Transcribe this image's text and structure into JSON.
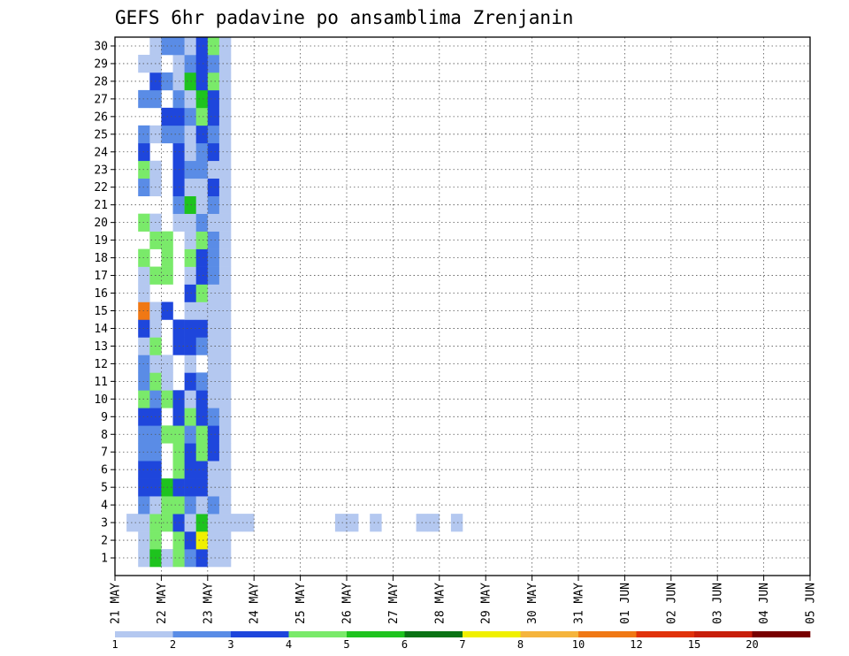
{
  "chart_data": {
    "type": "heatmap",
    "title": "GEFS 6hr padavine po ansamblima Zrenjanin",
    "xlabel": "",
    "ylabel": "",
    "x_ticks": [
      "21 MAY",
      "22 MAY",
      "23 MAY",
      "24 MAY",
      "25 MAY",
      "26 MAY",
      "27 MAY",
      "28 MAY",
      "29 MAY",
      "30 MAY",
      "31 MAY",
      "01 JUN",
      "02 JUN",
      "03 JUN",
      "04 JUN",
      "05 JUN"
    ],
    "y_ticks": [
      "1",
      "2",
      "3",
      "4",
      "5",
      "6",
      "7",
      "8",
      "9",
      "10",
      "11",
      "12",
      "13",
      "14",
      "15",
      "16",
      "17",
      "18",
      "19",
      "20",
      "21",
      "22",
      "23",
      "24",
      "25",
      "26",
      "27",
      "28",
      "29",
      "30"
    ],
    "grid": true,
    "legend_placement": "bottom",
    "levels": [
      "1",
      "2",
      "3",
      "4",
      "5",
      "6",
      "7",
      "8",
      "10",
      "12",
      "15",
      "20"
    ],
    "colors": [
      "#b4c8f0",
      "#5a8ce6",
      "#1e46dc",
      "#7aea6a",
      "#1ec31e",
      "#0a7314",
      "#f0f000",
      "#f5b43c",
      "#f07814",
      "#e1320a",
      "#c81e0a",
      "#780000"
    ],
    "cells": [
      [
        2,
        0,
        1
      ],
      [
        2,
        1,
        1
      ],
      [
        3,
        1,
        1
      ],
      [
        1,
        2,
        1
      ],
      [
        2,
        2,
        1
      ],
      [
        3,
        2,
        1
      ],
      [
        7,
        2,
        1
      ],
      [
        8,
        2,
        1
      ],
      [
        10,
        2,
        1
      ],
      [
        11,
        2,
        1
      ],
      [
        19,
        2,
        1
      ],
      [
        20,
        2,
        1
      ],
      [
        22,
        2,
        1
      ],
      [
        26,
        2,
        1
      ],
      [
        27,
        2,
        1
      ],
      [
        29,
        2,
        1
      ],
      [
        2,
        3,
        2
      ],
      [
        2,
        4,
        3
      ],
      [
        2,
        5,
        3
      ],
      [
        2,
        6,
        2
      ],
      [
        2,
        7,
        2
      ],
      [
        2,
        8,
        3
      ],
      [
        2,
        9,
        4
      ],
      [
        2,
        10,
        2
      ],
      [
        2,
        11,
        2
      ],
      [
        2,
        12,
        1
      ],
      [
        2,
        13,
        3
      ],
      [
        2,
        14,
        9
      ],
      [
        2,
        15,
        1
      ],
      [
        2,
        16,
        1
      ],
      [
        2,
        17,
        4
      ],
      [
        2,
        19,
        4
      ],
      [
        2,
        21,
        2
      ],
      [
        2,
        22,
        4
      ],
      [
        2,
        23,
        3
      ],
      [
        2,
        24,
        2
      ],
      [
        2,
        26,
        2
      ],
      [
        2,
        28,
        1
      ],
      [
        3,
        0,
        5
      ],
      [
        3,
        1,
        4
      ],
      [
        3,
        2,
        4
      ],
      [
        3,
        3,
        1
      ],
      [
        3,
        4,
        3
      ],
      [
        3,
        5,
        3
      ],
      [
        3,
        6,
        2
      ],
      [
        3,
        7,
        2
      ],
      [
        3,
        8,
        3
      ],
      [
        3,
        9,
        2
      ],
      [
        3,
        10,
        4
      ],
      [
        3,
        11,
        1
      ],
      [
        3,
        12,
        4
      ],
      [
        3,
        13,
        1
      ],
      [
        3,
        14,
        1
      ],
      [
        3,
        16,
        4
      ],
      [
        3,
        18,
        4
      ],
      [
        3,
        19,
        1
      ],
      [
        3,
        21,
        1
      ],
      [
        3,
        22,
        1
      ],
      [
        3,
        24,
        1
      ],
      [
        3,
        26,
        2
      ],
      [
        3,
        27,
        3
      ],
      [
        3,
        28,
        1
      ],
      [
        3,
        29,
        1
      ],
      [
        4,
        0,
        1
      ],
      [
        4,
        2,
        4
      ],
      [
        4,
        3,
        4
      ],
      [
        4,
        4,
        5
      ],
      [
        4,
        7,
        4
      ],
      [
        4,
        9,
        4
      ],
      [
        4,
        10,
        1
      ],
      [
        4,
        11,
        1
      ],
      [
        4,
        14,
        3
      ],
      [
        4,
        16,
        4
      ],
      [
        4,
        17,
        4
      ],
      [
        4,
        18,
        4
      ],
      [
        4,
        24,
        2
      ],
      [
        4,
        25,
        3
      ],
      [
        4,
        27,
        2
      ],
      [
        4,
        29,
        2
      ],
      [
        5,
        0,
        4
      ],
      [
        5,
        1,
        4
      ],
      [
        5,
        2,
        3
      ],
      [
        5,
        3,
        4
      ],
      [
        5,
        4,
        3
      ],
      [
        5,
        5,
        4
      ],
      [
        5,
        6,
        4
      ],
      [
        5,
        7,
        4
      ],
      [
        5,
        8,
        3
      ],
      [
        5,
        9,
        3
      ],
      [
        5,
        12,
        3
      ],
      [
        5,
        13,
        3
      ],
      [
        5,
        19,
        1
      ],
      [
        5,
        20,
        2
      ],
      [
        5,
        21,
        3
      ],
      [
        5,
        22,
        3
      ],
      [
        5,
        23,
        3
      ],
      [
        5,
        24,
        2
      ],
      [
        5,
        25,
        3
      ],
      [
        5,
        26,
        2
      ],
      [
        5,
        27,
        1
      ],
      [
        5,
        28,
        1
      ],
      [
        5,
        29,
        2
      ],
      [
        6,
        0,
        2
      ],
      [
        6,
        1,
        3
      ],
      [
        6,
        2,
        1
      ],
      [
        6,
        3,
        2
      ],
      [
        6,
        4,
        3
      ],
      [
        6,
        5,
        3
      ],
      [
        6,
        6,
        3
      ],
      [
        6,
        7,
        2
      ],
      [
        6,
        8,
        4
      ],
      [
        6,
        9,
        1
      ],
      [
        6,
        10,
        3
      ],
      [
        6,
        11,
        1
      ],
      [
        6,
        12,
        3
      ],
      [
        6,
        13,
        3
      ],
      [
        6,
        14,
        1
      ],
      [
        6,
        15,
        3
      ],
      [
        6,
        16,
        1
      ],
      [
        6,
        17,
        4
      ],
      [
        6,
        18,
        1
      ],
      [
        6,
        19,
        1
      ],
      [
        6,
        20,
        5
      ],
      [
        6,
        21,
        1
      ],
      [
        6,
        22,
        2
      ],
      [
        6,
        23,
        1
      ],
      [
        6,
        24,
        1
      ],
      [
        6,
        25,
        2
      ],
      [
        6,
        26,
        1
      ],
      [
        6,
        27,
        5
      ],
      [
        6,
        28,
        2
      ],
      [
        6,
        29,
        1
      ],
      [
        7,
        0,
        3
      ],
      [
        7,
        1,
        7
      ],
      [
        7,
        2,
        5
      ],
      [
        7,
        3,
        1
      ],
      [
        7,
        4,
        3
      ],
      [
        7,
        5,
        3
      ],
      [
        7,
        6,
        4
      ],
      [
        7,
        7,
        4
      ],
      [
        7,
        8,
        3
      ],
      [
        7,
        9,
        3
      ],
      [
        7,
        10,
        2
      ],
      [
        7,
        12,
        2
      ],
      [
        7,
        13,
        3
      ],
      [
        7,
        14,
        1
      ],
      [
        7,
        15,
        4
      ],
      [
        7,
        16,
        3
      ],
      [
        7,
        17,
        3
      ],
      [
        7,
        18,
        4
      ],
      [
        7,
        19,
        2
      ],
      [
        7,
        20,
        1
      ],
      [
        7,
        21,
        1
      ],
      [
        7,
        22,
        2
      ],
      [
        7,
        23,
        2
      ],
      [
        7,
        24,
        3
      ],
      [
        7,
        25,
        4
      ],
      [
        7,
        26,
        5
      ],
      [
        7,
        27,
        3
      ],
      [
        7,
        28,
        3
      ],
      [
        7,
        29,
        3
      ],
      [
        8,
        0,
        1
      ],
      [
        8,
        1,
        1
      ],
      [
        8,
        2,
        1
      ],
      [
        8,
        3,
        2
      ],
      [
        8,
        4,
        1
      ],
      [
        8,
        5,
        1
      ],
      [
        8,
        6,
        3
      ],
      [
        8,
        7,
        3
      ],
      [
        8,
        8,
        2
      ],
      [
        8,
        9,
        1
      ],
      [
        8,
        10,
        1
      ],
      [
        8,
        11,
        1
      ],
      [
        8,
        12,
        1
      ],
      [
        8,
        13,
        1
      ],
      [
        8,
        14,
        1
      ],
      [
        8,
        15,
        1
      ],
      [
        8,
        16,
        2
      ],
      [
        8,
        17,
        2
      ],
      [
        8,
        18,
        2
      ],
      [
        8,
        19,
        1
      ],
      [
        8,
        20,
        2
      ],
      [
        8,
        21,
        3
      ],
      [
        8,
        22,
        1
      ],
      [
        8,
        23,
        3
      ],
      [
        8,
        24,
        2
      ],
      [
        8,
        25,
        3
      ],
      [
        8,
        26,
        3
      ],
      [
        8,
        27,
        4
      ],
      [
        8,
        28,
        2
      ],
      [
        8,
        29,
        4
      ],
      [
        9,
        0,
        1
      ],
      [
        9,
        1,
        1
      ],
      [
        9,
        2,
        1
      ],
      [
        9,
        3,
        1
      ],
      [
        9,
        4,
        1
      ],
      [
        9,
        5,
        1
      ],
      [
        9,
        6,
        1
      ],
      [
        9,
        7,
        1
      ],
      [
        9,
        8,
        1
      ],
      [
        9,
        9,
        1
      ],
      [
        9,
        10,
        1
      ],
      [
        9,
        11,
        1
      ],
      [
        9,
        12,
        1
      ],
      [
        9,
        13,
        1
      ],
      [
        9,
        14,
        1
      ],
      [
        9,
        15,
        1
      ],
      [
        9,
        16,
        1
      ],
      [
        9,
        17,
        1
      ],
      [
        9,
        18,
        1
      ],
      [
        9,
        19,
        1
      ],
      [
        9,
        20,
        1
      ],
      [
        9,
        21,
        1
      ],
      [
        9,
        22,
        1
      ],
      [
        9,
        23,
        1
      ],
      [
        9,
        24,
        1
      ],
      [
        9,
        25,
        1
      ],
      [
        9,
        26,
        1
      ],
      [
        9,
        27,
        1
      ],
      [
        9,
        28,
        1
      ],
      [
        9,
        29,
        1
      ]
    ]
  },
  "colorbar_labels": [
    "1",
    "2",
    "3",
    "4",
    "5",
    "6",
    "7",
    "8",
    "10",
    "12",
    "15",
    "20"
  ]
}
